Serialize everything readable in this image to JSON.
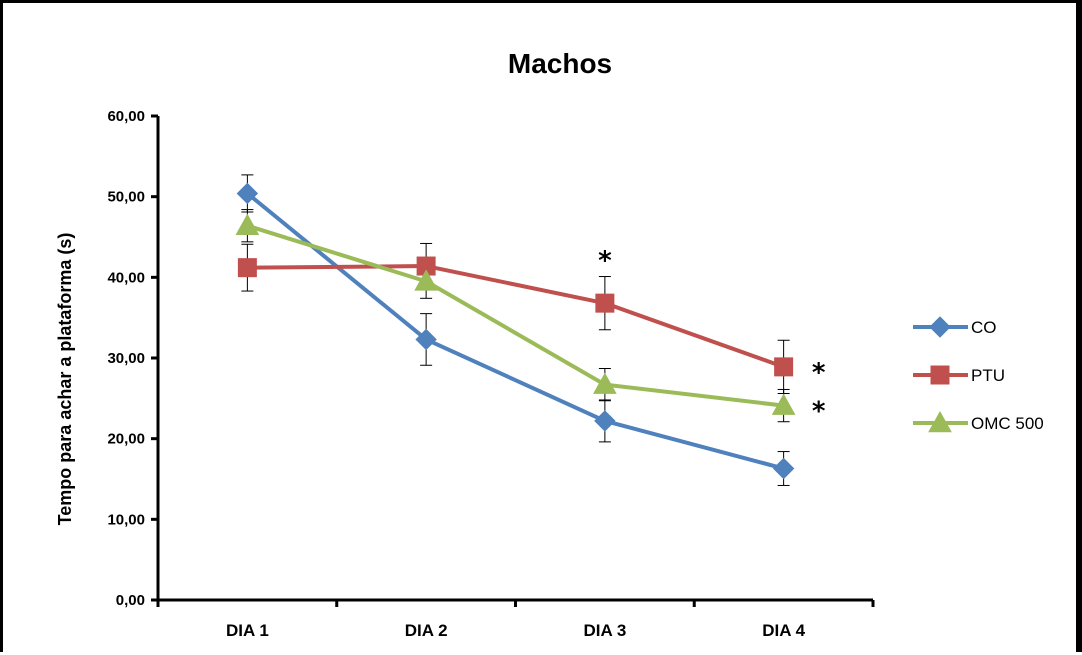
{
  "chart_data": {
    "type": "line",
    "title": "Machos",
    "xlabel": "",
    "ylabel": "Tempo para achar a plataforma (s)",
    "ylim": [
      0,
      60
    ],
    "yticks": [
      "0,00",
      "10,00",
      "20,00",
      "30,00",
      "40,00",
      "50,00",
      "60,00"
    ],
    "categories": [
      "DIA 1",
      "DIA 2",
      "DIA 3",
      "DIA 4"
    ],
    "grid": false,
    "legend_position": "right",
    "series": [
      {
        "name": "CO",
        "color": "#4F81BD",
        "marker": "diamond",
        "values": [
          50.4,
          32.3,
          22.2,
          16.3
        ],
        "errors": [
          2.3,
          3.2,
          2.6,
          2.1
        ]
      },
      {
        "name": "PTU",
        "color": "#C0504D",
        "marker": "square",
        "values": [
          41.2,
          41.4,
          36.8,
          28.9
        ],
        "errors": [
          2.9,
          2.8,
          3.3,
          3.3
        ]
      },
      {
        "name": "OMC 500",
        "color": "#9BBB59",
        "marker": "triangle",
        "values": [
          46.4,
          39.5,
          26.7,
          24.1
        ],
        "errors": [
          2.0,
          2.1,
          2.0,
          2.0
        ]
      }
    ],
    "annotations": [
      {
        "text": "*",
        "category": "DIA 3",
        "y": 42.5
      },
      {
        "text": "*",
        "category": "DIA 4",
        "series": "PTU"
      },
      {
        "text": "*",
        "category": "DIA 4",
        "series": "OMC 500"
      }
    ]
  }
}
